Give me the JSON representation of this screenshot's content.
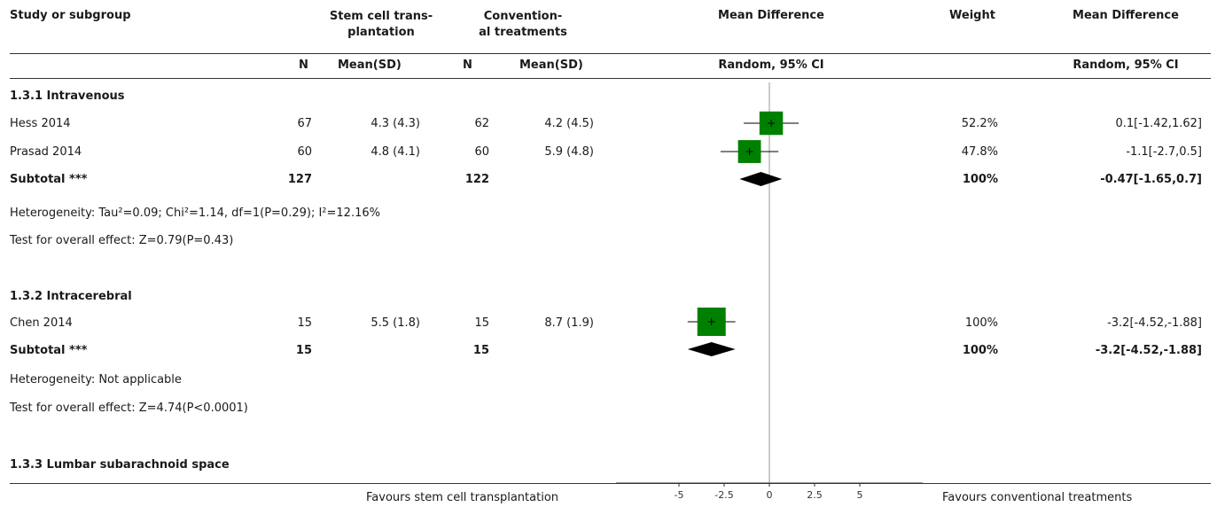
{
  "header": {
    "study_col": "Study or subgroup",
    "group1_title_l1": "Stem cell trans-",
    "group1_title_l2": "plantation",
    "group2_title_l1": "Convention-",
    "group2_title_l2": "al treatments",
    "md_title": "Mean Difference",
    "weight_title": "Weight",
    "md2_title": "Mean Difference",
    "n_label": "N",
    "mean_sd_label": "Mean(SD)",
    "random_ci": "Random, 95% CI"
  },
  "rows": [
    {
      "kind": "group_title",
      "text": "1.3.1 Intravenous"
    },
    {
      "kind": "study",
      "name": "Hess 2014",
      "n1": "67",
      "m1": "4.3 (4.3)",
      "n2": "62",
      "m2": "4.2 (4.5)",
      "weight": "52.2%",
      "ci": "0.1[-1.42,1.62]"
    },
    {
      "kind": "study",
      "name": "Prasad 2014",
      "n1": "60",
      "m1": "4.8 (4.1)",
      "n2": "60",
      "m2": "5.9 (4.8)",
      "weight": "47.8%",
      "ci": "-1.1[-2.7,0.5]"
    },
    {
      "kind": "subtotal",
      "name": "Subtotal ***",
      "n1": "127",
      "n2": "122",
      "weight": "100%",
      "ci": "-0.47[-1.65,0.7]"
    },
    {
      "kind": "note",
      "text": "Heterogeneity: Tau²=0.09; Chi²=1.14, df=1(P=0.29); I²=12.16%"
    },
    {
      "kind": "note",
      "text": "Test for overall effect: Z=0.79(P=0.43)"
    },
    {
      "kind": "group_title",
      "text": "1.3.2 Intracerebral"
    },
    {
      "kind": "study",
      "name": "Chen 2014",
      "n1": "15",
      "m1": "5.5 (1.8)",
      "n2": "15",
      "m2": "8.7 (1.9)",
      "weight": "100%",
      "ci": "-3.2[-4.52,-1.88]"
    },
    {
      "kind": "subtotal",
      "name": "Subtotal ***",
      "n1": "15",
      "n2": "15",
      "weight": "100%",
      "ci": "-3.2[-4.52,-1.88]"
    },
    {
      "kind": "note",
      "text": "Heterogeneity: Not applicable"
    },
    {
      "kind": "note",
      "text": "Test for overall effect: Z=4.74(P<0.0001)"
    },
    {
      "kind": "group_title",
      "text": "1.3.3 Lumbar subarachnoid space"
    }
  ],
  "footer": {
    "favours_left": "Favours stem cell transplantation",
    "favours_right": "Favours conventional treatments"
  },
  "chart_data": {
    "type": "forest",
    "xlim": [
      -5,
      5
    ],
    "ticks": [
      "-5",
      "-2.5",
      "0",
      "2.5",
      "5"
    ],
    "tick_values": [
      -5,
      -2.5,
      0,
      2.5,
      5
    ],
    "colors": {
      "study_box": "#008000",
      "diamond": "#000000",
      "line": "#000000",
      "zero_line": "#999999"
    },
    "studies": [
      {
        "name": "Hess 2014",
        "group": "1.3.1 Intravenous",
        "md": 0.1,
        "lo": -1.42,
        "hi": 1.62,
        "weight": 52.2
      },
      {
        "name": "Prasad 2014",
        "group": "1.3.1 Intravenous",
        "md": -1.1,
        "lo": -2.7,
        "hi": 0.5,
        "weight": 47.8
      },
      {
        "name": "Chen 2014",
        "group": "1.3.2 Intracerebral",
        "md": -3.2,
        "lo": -4.52,
        "hi": -1.88,
        "weight": 100
      }
    ],
    "subtotals": [
      {
        "group": "1.3.1 Intravenous",
        "md": -0.47,
        "lo": -1.65,
        "hi": 0.7
      },
      {
        "group": "1.3.2 Intracerebral",
        "md": -3.2,
        "lo": -4.52,
        "hi": -1.88
      }
    ]
  }
}
